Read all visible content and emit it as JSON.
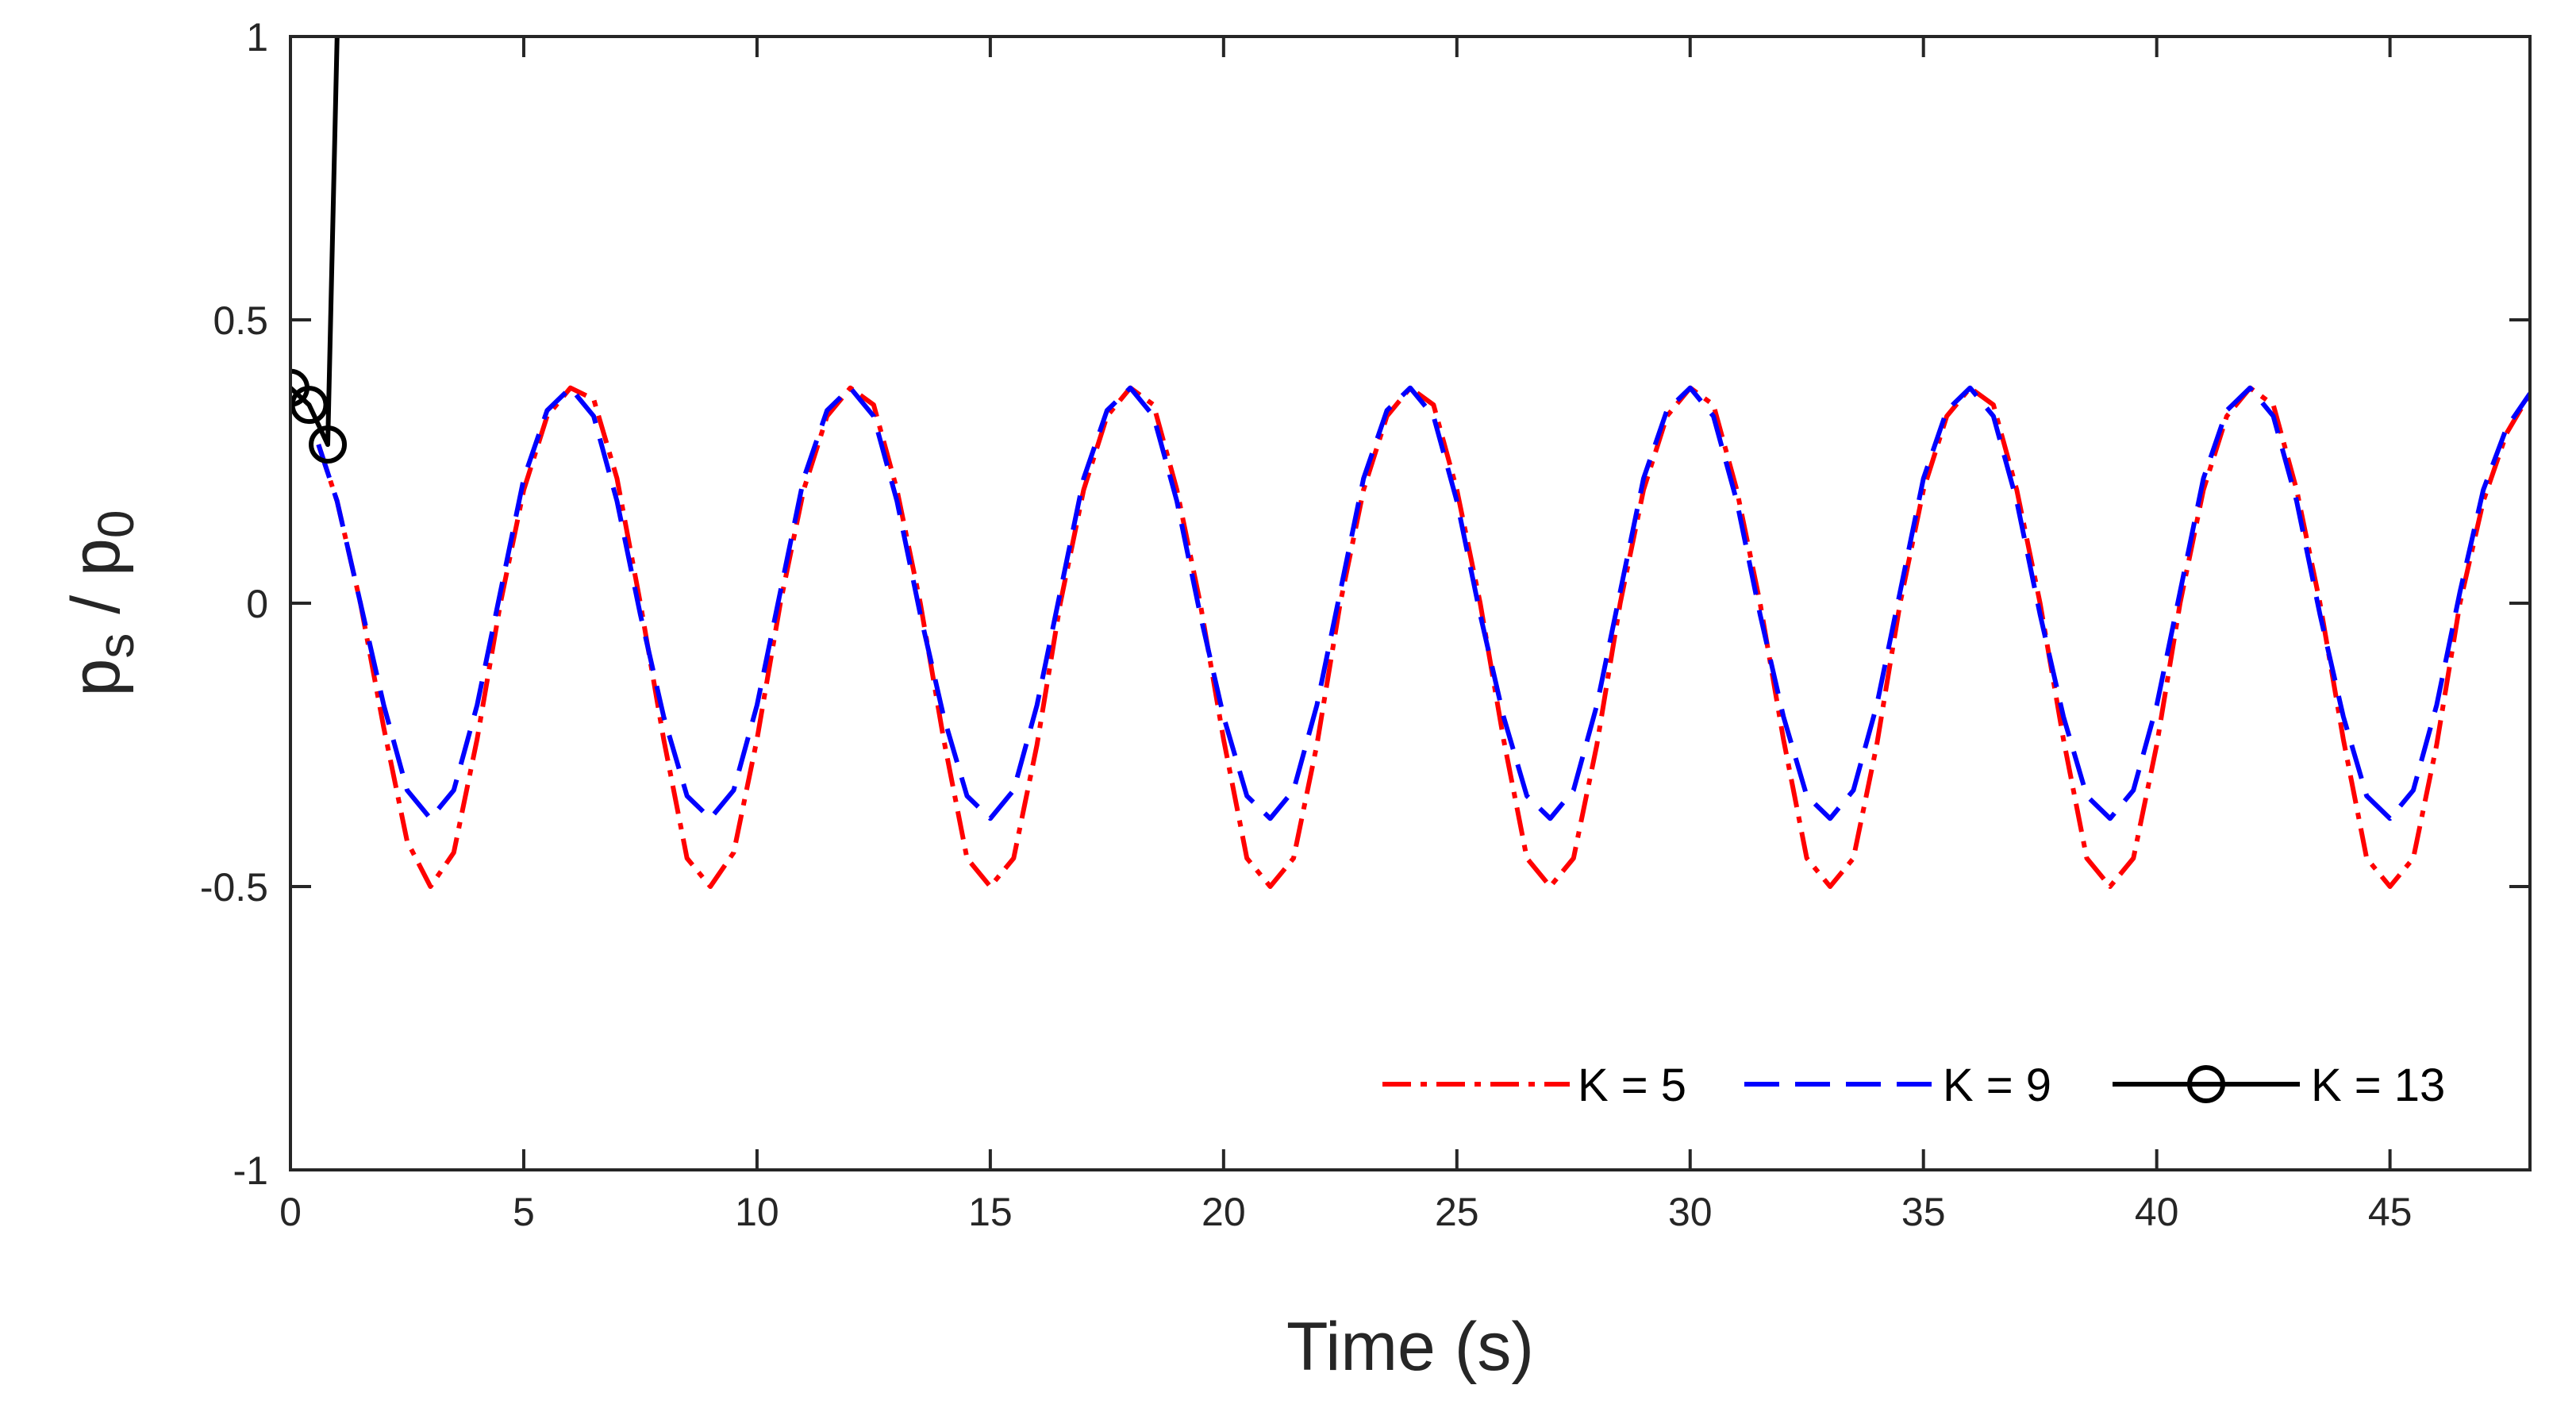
{
  "chart_data": {
    "type": "line",
    "xlabel": "Time (s)",
    "ylabel": {
      "main": "p",
      "sub1": "s",
      "sep": " / ",
      "main2": "p",
      "sub2": "0"
    },
    "xlim": [
      0,
      48
    ],
    "ylim": [
      -1,
      1
    ],
    "xticks": [
      0,
      5,
      10,
      15,
      20,
      25,
      30,
      35,
      40,
      45
    ],
    "yticks": [
      -1,
      -0.5,
      0,
      0.5,
      1
    ],
    "ytick_labels": [
      "-1",
      "-0.5",
      "0",
      "0.5",
      "1"
    ],
    "grid": false,
    "legend_position": "bottom-right",
    "colors": {
      "axis": "#262626",
      "k5": "#ff0000",
      "k9": "#0000ff",
      "k13": "#000000"
    },
    "series": [
      {
        "name": "K = 5",
        "style": "dash-dot",
        "color": "#ff0000",
        "x": [
          0.6,
          1.0,
          1.5,
          2.0,
          2.5,
          3.0,
          3.5,
          4.0,
          4.5,
          5.0,
          5.5,
          6.0,
          6.5,
          7.0,
          7.5,
          8.0,
          8.5,
          9.0,
          9.5,
          10.0,
          10.5,
          11.0,
          11.5,
          12.0,
          12.5,
          13.0,
          13.5,
          14.0,
          14.5,
          15.0,
          15.5,
          16.0,
          16.5,
          17.0,
          17.5,
          18.0,
          18.5,
          19.0,
          19.5,
          20.0,
          20.5,
          21.0,
          21.5,
          22.0,
          22.5,
          23.0,
          23.5,
          24.0,
          24.5,
          25.0,
          25.5,
          26.0,
          26.5,
          27.0,
          27.5,
          28.0,
          28.5,
          29.0,
          29.5,
          30.0,
          30.5,
          31.0,
          31.5,
          32.0,
          32.5,
          33.0,
          33.5,
          34.0,
          34.5,
          35.0,
          35.5,
          36.0,
          36.5,
          37.0,
          37.5,
          38.0,
          38.5,
          39.0,
          39.5,
          40.0,
          40.5,
          41.0,
          41.5,
          42.0,
          42.5,
          43.0,
          43.5,
          44.0,
          44.5,
          45.0,
          45.5,
          46.0,
          46.5,
          47.0,
          47.5,
          48.0
        ],
        "y": [
          0.28,
          0.18,
          0.0,
          -0.22,
          -0.42,
          -0.5,
          -0.44,
          -0.24,
          0.0,
          0.2,
          0.33,
          0.38,
          0.36,
          0.22,
          0.0,
          -0.24,
          -0.45,
          -0.5,
          -0.44,
          -0.24,
          0.0,
          0.2,
          0.33,
          0.38,
          0.35,
          0.2,
          0.0,
          -0.24,
          -0.45,
          -0.5,
          -0.45,
          -0.25,
          0.0,
          0.2,
          0.33,
          0.38,
          0.35,
          0.2,
          0.0,
          -0.24,
          -0.45,
          -0.5,
          -0.45,
          -0.25,
          0.0,
          0.2,
          0.33,
          0.38,
          0.35,
          0.2,
          0.0,
          -0.24,
          -0.45,
          -0.5,
          -0.45,
          -0.25,
          0.0,
          0.2,
          0.33,
          0.38,
          0.35,
          0.2,
          0.0,
          -0.24,
          -0.45,
          -0.5,
          -0.45,
          -0.25,
          0.0,
          0.2,
          0.33,
          0.38,
          0.35,
          0.2,
          0.0,
          -0.24,
          -0.45,
          -0.5,
          -0.45,
          -0.25,
          0.0,
          0.2,
          0.33,
          0.38,
          0.35,
          0.2,
          0.0,
          -0.24,
          -0.45,
          -0.5,
          -0.45,
          -0.25,
          0.0,
          0.18,
          0.3,
          0.37
        ]
      },
      {
        "name": "K = 9",
        "style": "dashed",
        "color": "#0000ff",
        "x": [
          0.6,
          1.0,
          1.5,
          2.0,
          2.5,
          3.0,
          3.5,
          4.0,
          4.5,
          5.0,
          5.5,
          6.0,
          6.5,
          7.0,
          7.5,
          8.0,
          8.5,
          9.0,
          9.5,
          10.0,
          10.5,
          11.0,
          11.5,
          12.0,
          12.5,
          13.0,
          13.5,
          14.0,
          14.5,
          15.0,
          15.5,
          16.0,
          16.5,
          17.0,
          17.5,
          18.0,
          18.5,
          19.0,
          19.5,
          20.0,
          20.5,
          21.0,
          21.5,
          22.0,
          22.5,
          23.0,
          23.5,
          24.0,
          24.5,
          25.0,
          25.5,
          26.0,
          26.5,
          27.0,
          27.5,
          28.0,
          28.5,
          29.0,
          29.5,
          30.0,
          30.5,
          31.0,
          31.5,
          32.0,
          32.5,
          33.0,
          33.5,
          34.0,
          34.5,
          35.0,
          35.5,
          36.0,
          36.5,
          37.0,
          37.5,
          38.0,
          38.5,
          39.0,
          39.5,
          40.0,
          40.5,
          41.0,
          41.5,
          42.0,
          42.5,
          43.0,
          43.5,
          44.0,
          44.5,
          45.0,
          45.5,
          46.0,
          46.5,
          47.0,
          47.5,
          48.0
        ],
        "y": [
          0.28,
          0.18,
          0.0,
          -0.18,
          -0.33,
          -0.38,
          -0.33,
          -0.18,
          0.02,
          0.22,
          0.34,
          0.38,
          0.33,
          0.18,
          -0.02,
          -0.2,
          -0.34,
          -0.38,
          -0.33,
          -0.18,
          0.02,
          0.22,
          0.34,
          0.38,
          0.33,
          0.18,
          -0.02,
          -0.2,
          -0.34,
          -0.38,
          -0.33,
          -0.18,
          0.02,
          0.22,
          0.34,
          0.38,
          0.33,
          0.18,
          -0.02,
          -0.2,
          -0.34,
          -0.38,
          -0.33,
          -0.18,
          0.02,
          0.22,
          0.34,
          0.38,
          0.33,
          0.18,
          -0.02,
          -0.2,
          -0.34,
          -0.38,
          -0.33,
          -0.18,
          0.02,
          0.22,
          0.34,
          0.38,
          0.33,
          0.18,
          -0.02,
          -0.2,
          -0.34,
          -0.38,
          -0.33,
          -0.18,
          0.02,
          0.22,
          0.34,
          0.38,
          0.33,
          0.18,
          -0.02,
          -0.2,
          -0.34,
          -0.38,
          -0.33,
          -0.18,
          0.02,
          0.22,
          0.34,
          0.38,
          0.33,
          0.18,
          -0.02,
          -0.2,
          -0.34,
          -0.38,
          -0.33,
          -0.18,
          0.02,
          0.2,
          0.31,
          0.37
        ]
      },
      {
        "name": "K = 13",
        "style": "solid-circle",
        "color": "#000000",
        "x": [
          0.0,
          0.4,
          0.8,
          1.0,
          1.05
        ],
        "y": [
          0.38,
          0.35,
          0.28,
          1.0,
          1.0
        ],
        "markers": [
          [
            0.0,
            0.38
          ],
          [
            0.4,
            0.35
          ],
          [
            0.8,
            0.28
          ]
        ]
      }
    ]
  }
}
